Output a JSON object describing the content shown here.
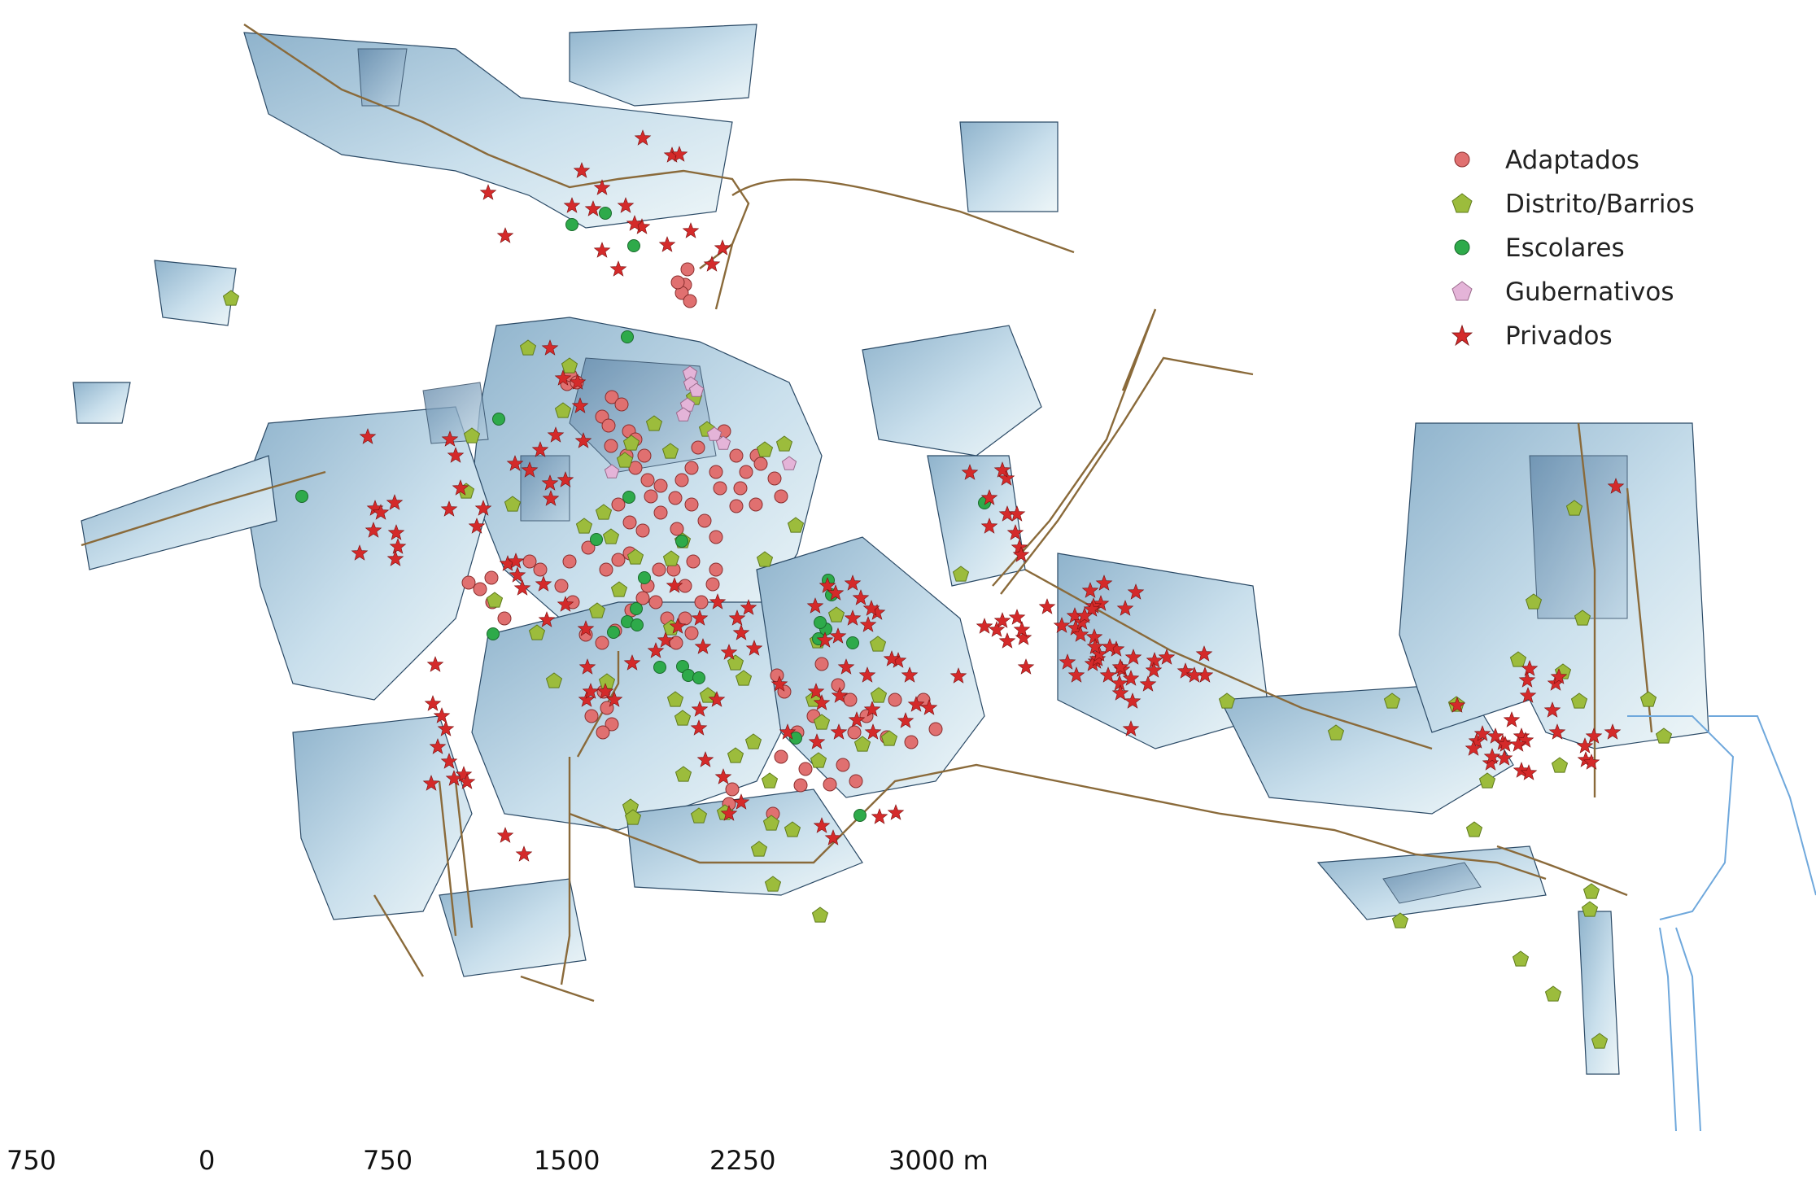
{
  "colors": {
    "block_fill_light": "#dcebf3",
    "block_fill_dark": "#8fb3cc",
    "block_stroke": "#2b4a66",
    "rail": "#8a6a3a",
    "port": "#6fa8dc",
    "adaptados": "#e07070",
    "distrito_barrios": "#9cbc3c",
    "escolares": "#2eaa4a",
    "gubernativos": "#e4b4d8",
    "privados": "#d42a2a"
  },
  "legend": {
    "items": [
      {
        "label": "Adaptados",
        "symbol": "circle",
        "color": "#e07070"
      },
      {
        "label": "Distrito/Barrios",
        "symbol": "pentagon",
        "color": "#9cbc3c"
      },
      {
        "label": "Escolares",
        "symbol": "circle",
        "color": "#2eaa4a"
      },
      {
        "label": "Gubernativos",
        "symbol": "pentagon",
        "color": "#e4b4d8"
      },
      {
        "label": "Privados",
        "symbol": "star",
        "color": "#d42a2a"
      }
    ]
  },
  "scale_bar": {
    "labels": [
      "750",
      "0",
      "750",
      "1500",
      "2250",
      "3000 m"
    ]
  }
}
